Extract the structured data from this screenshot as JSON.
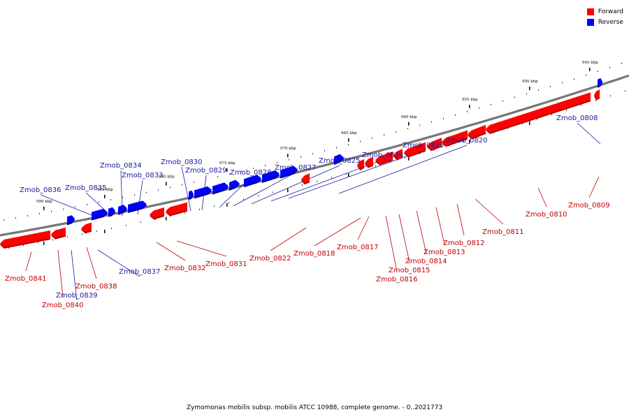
{
  "legend": {
    "forward_label": "Forward",
    "reverse_label": "Reverse",
    "forward_color": "#ff0000",
    "reverse_color": "#0000ff"
  },
  "caption": "Zymomonas mobilis subsp. mobilis ATCC 10988, complete genome. - 0..2021773",
  "colors": {
    "forward": "#ff0000",
    "forward_dark": "#b00000",
    "reverse": "#0000ff",
    "reverse_dark": "#00008a",
    "backbone": "#808080",
    "forward_label": "#c00000",
    "reverse_label": "#1a1aa0"
  },
  "kbp_ticks": [
    "990 kbp",
    "985 kbp",
    "980 kbp",
    "975 kbp",
    "970 kbp",
    "965 kbp",
    "960 kbp",
    "955 kbp",
    "950 kbp",
    "945 kbp"
  ],
  "genes": [
    {
      "id": "Zmob_0808",
      "strand": "reverse"
    },
    {
      "id": "Zmob_0809",
      "strand": "forward"
    },
    {
      "id": "Zmob_0810",
      "strand": "forward"
    },
    {
      "id": "Zmob_0811",
      "strand": "forward"
    },
    {
      "id": "Zmob_0812",
      "strand": "forward"
    },
    {
      "id": "Zmob_0813",
      "strand": "forward"
    },
    {
      "id": "Zmob_0814",
      "strand": "forward"
    },
    {
      "id": "Zmob_0815",
      "strand": "forward"
    },
    {
      "id": "Zmob_0816",
      "strand": "forward"
    },
    {
      "id": "Zmob_0817",
      "strand": "forward"
    },
    {
      "id": "Zmob_0818",
      "strand": "forward"
    },
    {
      "id": "Zmob_0820",
      "strand": "reverse"
    },
    {
      "id": "Zmob_0822",
      "strand": "forward"
    },
    {
      "id": "Zmob_0823",
      "strand": "reverse"
    },
    {
      "id": "Zmob_0824",
      "strand": "reverse"
    },
    {
      "id": "Zmob_0825",
      "strand": "reverse"
    },
    {
      "id": "Zmob_0827",
      "strand": "reverse"
    },
    {
      "id": "Zmob_0828",
      "strand": "reverse"
    },
    {
      "id": "Zmob_0829",
      "strand": "reverse"
    },
    {
      "id": "Zmob_0830",
      "strand": "reverse"
    },
    {
      "id": "Zmob_0831",
      "strand": "forward"
    },
    {
      "id": "Zmob_0832",
      "strand": "forward"
    },
    {
      "id": "Zmob_0833",
      "strand": "reverse"
    },
    {
      "id": "Zmob_0834",
      "strand": "reverse"
    },
    {
      "id": "Zmob_0835",
      "strand": "reverse"
    },
    {
      "id": "Zmob_0836",
      "strand": "reverse"
    },
    {
      "id": "Zmob_0837",
      "strand": "reverse"
    },
    {
      "id": "Zmob_0838",
      "strand": "forward"
    },
    {
      "id": "Zmob_0839",
      "strand": "reverse"
    },
    {
      "id": "Zmob_0840",
      "strand": "forward"
    },
    {
      "id": "Zmob_0841",
      "strand": "forward"
    }
  ]
}
